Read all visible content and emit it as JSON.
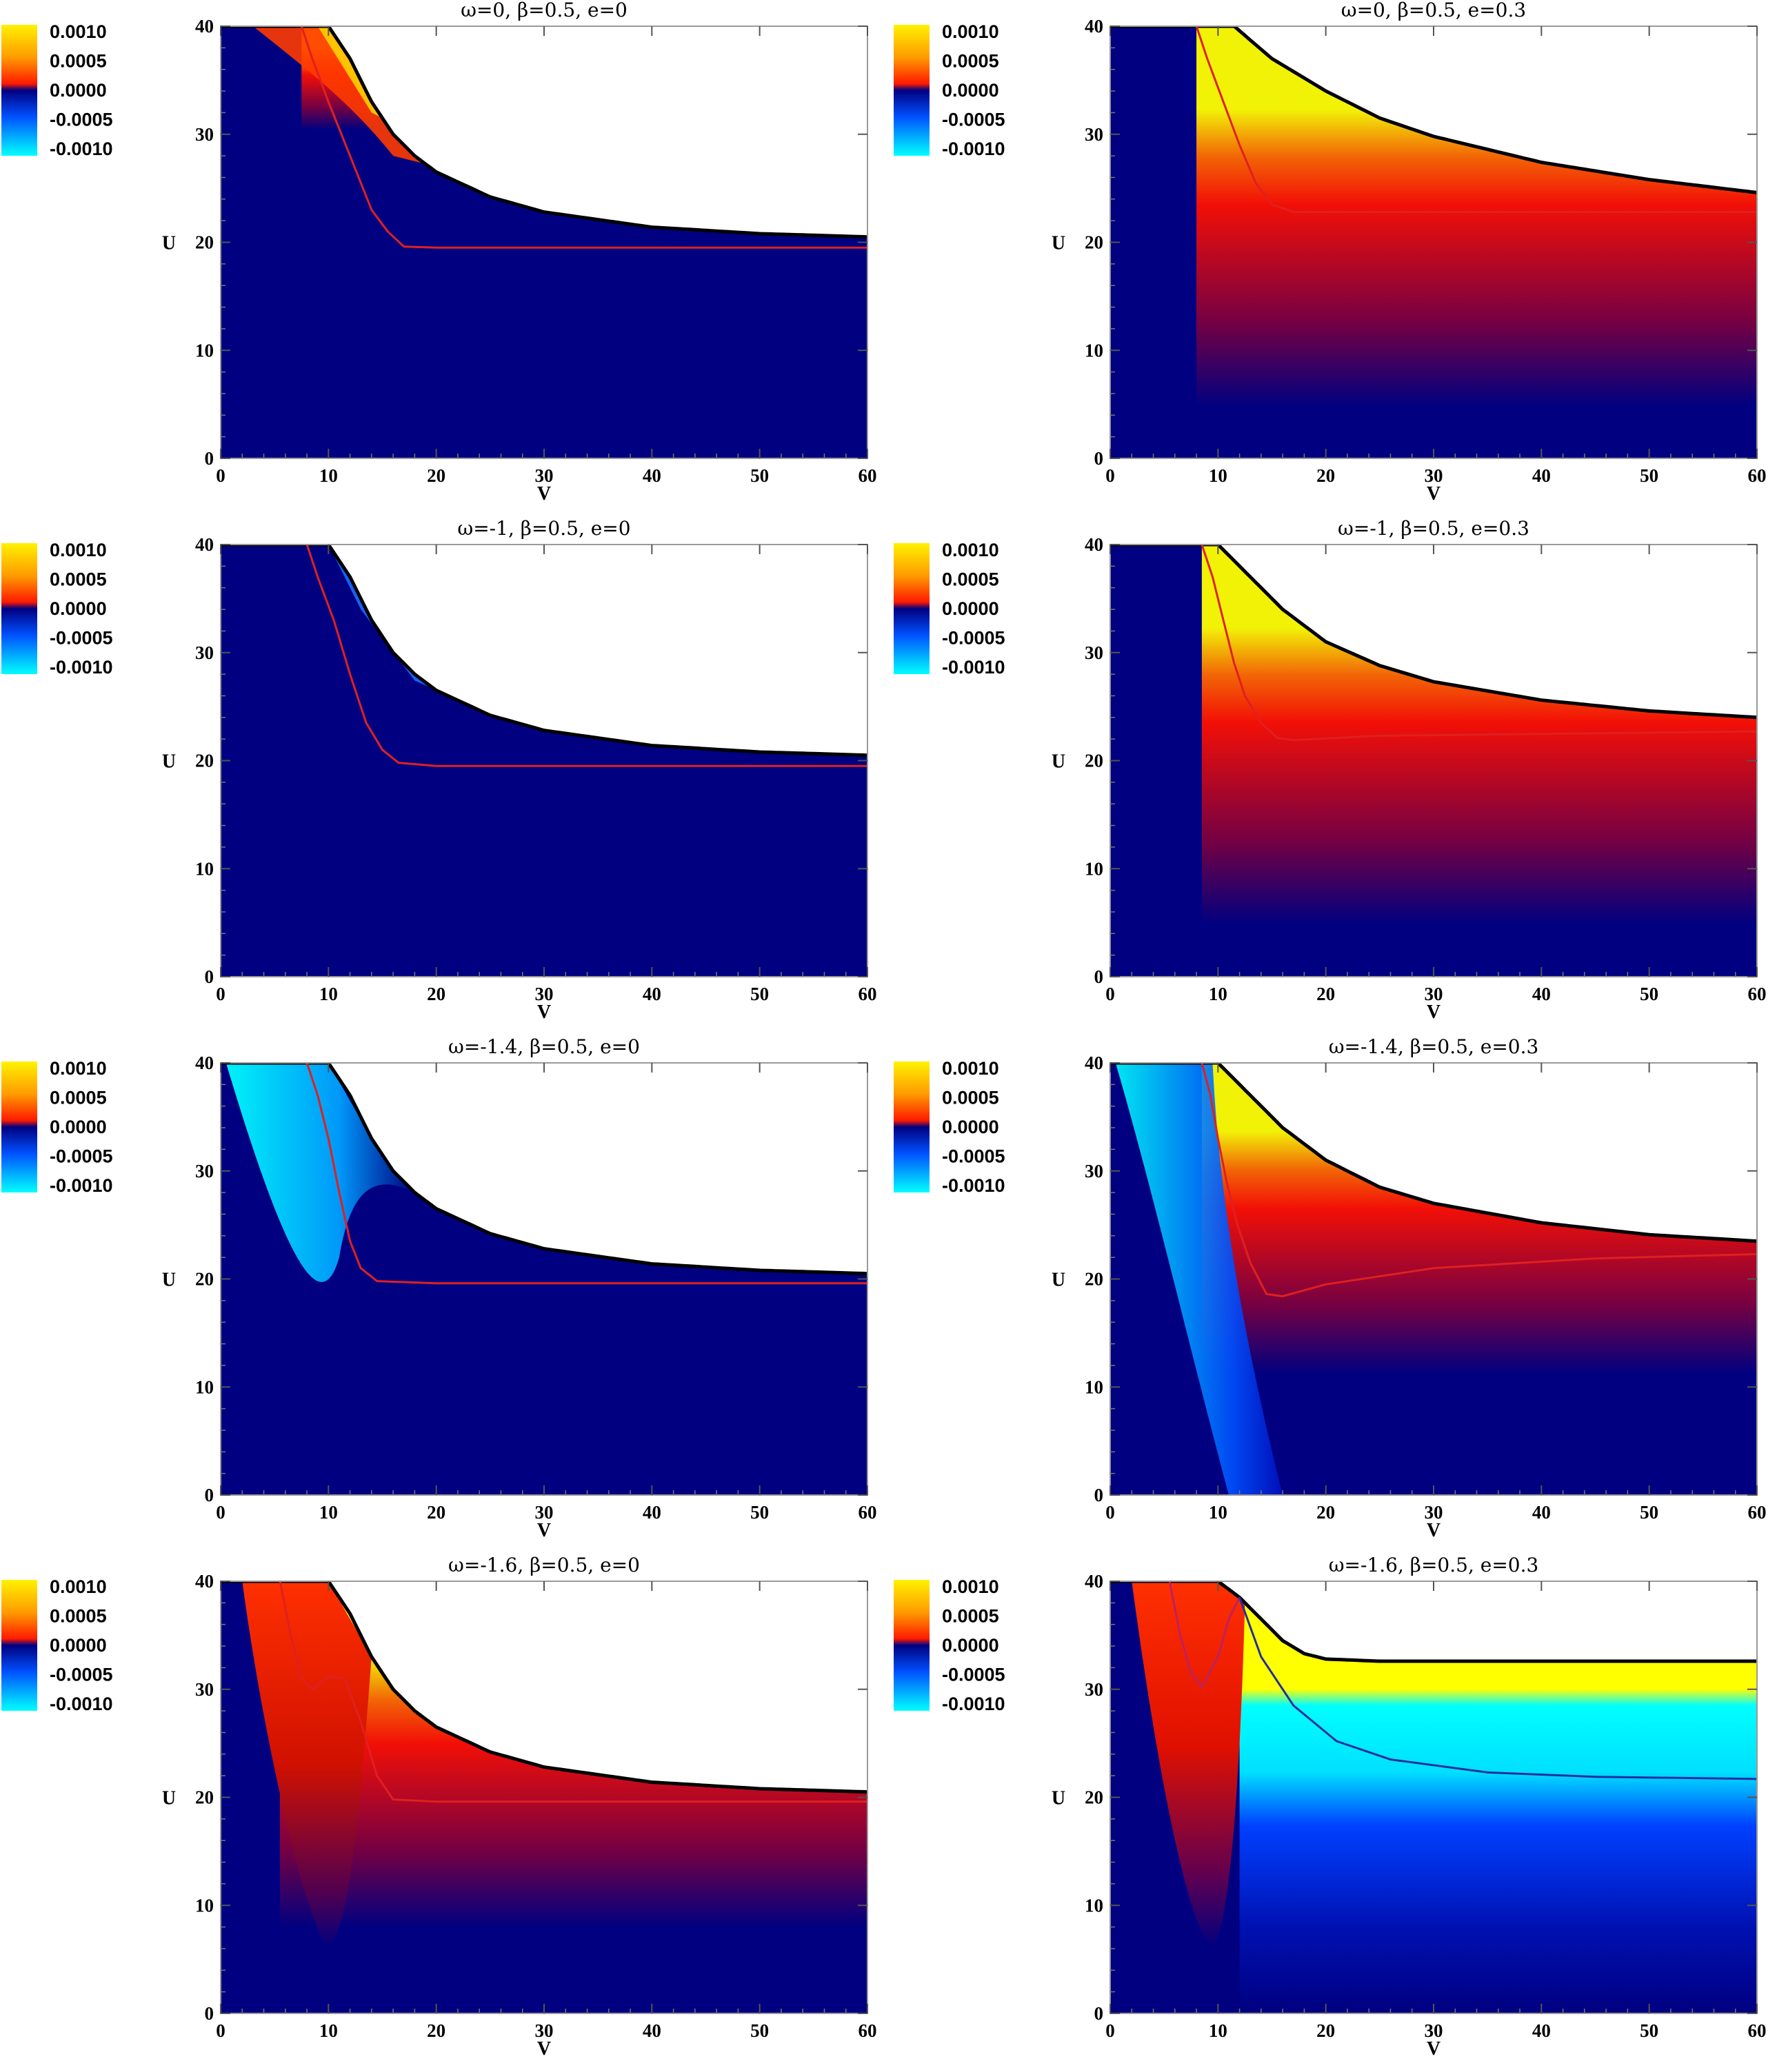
{
  "colorbar": {
    "labels": [
      "0.0010",
      "0.0005",
      "0.0000",
      "-0.0005",
      "-0.0010"
    ],
    "colors": [
      "#fff200",
      "#ff9a00",
      "#ff1a00",
      "#000080",
      "#0050ff",
      "#00ffff"
    ]
  },
  "chart_data": [
    {
      "type": "heatmap",
      "title": "ω=0,   β=0.5,   e=0",
      "xlabel": "V",
      "ylabel": "U",
      "xlim": [
        0,
        60
      ],
      "ylim": [
        0,
        40
      ],
      "xticks": [
        "0",
        "10",
        "20",
        "30",
        "40",
        "50",
        "60"
      ],
      "yticks": [
        "0",
        "10",
        "20",
        "30",
        "40"
      ],
      "boundary": [
        [
          0,
          40
        ],
        [
          10,
          40
        ],
        [
          12,
          37
        ],
        [
          14,
          33
        ],
        [
          16,
          30
        ],
        [
          18,
          28
        ],
        [
          20,
          26.5
        ],
        [
          25,
          24.2
        ],
        [
          30,
          22.8
        ],
        [
          40,
          21.4
        ],
        [
          50,
          20.8
        ],
        [
          60,
          20.5
        ]
      ],
      "red_curve": [
        [
          7.5,
          40
        ],
        [
          8.5,
          37
        ],
        [
          10,
          33
        ],
        [
          12,
          28
        ],
        [
          14,
          23
        ],
        [
          15.5,
          21
        ],
        [
          17,
          19.6
        ],
        [
          20,
          19.5
        ],
        [
          60,
          19.5
        ]
      ],
      "yellow_band": 0.15
    },
    {
      "type": "heatmap",
      "title": "ω=0,   β=0.5,   e=0.3",
      "xlabel": "V",
      "ylabel": "U",
      "xlim": [
        0,
        60
      ],
      "ylim": [
        0,
        40
      ],
      "xticks": [
        "0",
        "10",
        "20",
        "30",
        "40",
        "50",
        "60"
      ],
      "yticks": [
        "0",
        "10",
        "20",
        "30",
        "40"
      ],
      "boundary": [
        [
          0,
          40
        ],
        [
          11.5,
          40
        ],
        [
          15,
          37
        ],
        [
          20,
          34
        ],
        [
          25,
          31.5
        ],
        [
          30,
          29.8
        ],
        [
          40,
          27.4
        ],
        [
          50,
          25.8
        ],
        [
          60,
          24.6
        ]
      ],
      "red_curve": [
        [
          8,
          40
        ],
        [
          9,
          37
        ],
        [
          10.5,
          33
        ],
        [
          12,
          29
        ],
        [
          13.5,
          25.5
        ],
        [
          15,
          23.5
        ],
        [
          17,
          22.8
        ],
        [
          25,
          22.8
        ],
        [
          60,
          22.8
        ]
      ],
      "yellow_band": 0.55
    },
    {
      "type": "heatmap",
      "title": "ω=-1,   β=0.5,   e=0",
      "xlabel": "V",
      "ylabel": "U",
      "xlim": [
        0,
        60
      ],
      "ylim": [
        0,
        40
      ],
      "xticks": [
        "0",
        "10",
        "20",
        "30",
        "40",
        "50",
        "60"
      ],
      "yticks": [
        "0",
        "10",
        "20",
        "30",
        "40"
      ],
      "boundary": [
        [
          0,
          40
        ],
        [
          10,
          40
        ],
        [
          12,
          37
        ],
        [
          14,
          33
        ],
        [
          16,
          30
        ],
        [
          18,
          28
        ],
        [
          20,
          26.5
        ],
        [
          25,
          24.2
        ],
        [
          30,
          22.8
        ],
        [
          40,
          21.4
        ],
        [
          50,
          20.8
        ],
        [
          60,
          20.5
        ]
      ],
      "red_curve": [
        [
          8,
          40
        ],
        [
          9,
          37
        ],
        [
          10.5,
          33
        ],
        [
          12,
          28
        ],
        [
          13.5,
          23.5
        ],
        [
          15,
          21
        ],
        [
          16.5,
          19.8
        ],
        [
          20,
          19.5
        ],
        [
          60,
          19.5
        ]
      ],
      "yellow_band": 0
    },
    {
      "type": "heatmap",
      "title": "ω=-1,   β=0.5,   e=0.3",
      "xlabel": "V",
      "ylabel": "U",
      "xlim": [
        0,
        60
      ],
      "ylim": [
        0,
        40
      ],
      "xticks": [
        "0",
        "10",
        "20",
        "30",
        "40",
        "50",
        "60"
      ],
      "yticks": [
        "0",
        "10",
        "20",
        "30",
        "40"
      ],
      "boundary": [
        [
          0,
          40
        ],
        [
          10,
          40
        ],
        [
          13,
          37
        ],
        [
          16,
          34
        ],
        [
          20,
          31
        ],
        [
          25,
          28.8
        ],
        [
          30,
          27.3
        ],
        [
          40,
          25.6
        ],
        [
          50,
          24.6
        ],
        [
          60,
          24
        ]
      ],
      "red_curve": [
        [
          8.5,
          40
        ],
        [
          9.5,
          37
        ],
        [
          10.5,
          33
        ],
        [
          11.5,
          29
        ],
        [
          12.5,
          26
        ],
        [
          14,
          23.5
        ],
        [
          15.5,
          22.1
        ],
        [
          17,
          21.9
        ],
        [
          25,
          22.3
        ],
        [
          60,
          22.7
        ]
      ],
      "yellow_band": 0.55
    },
    {
      "type": "heatmap",
      "title": "ω=-1.4,   β=0.5,   e=0",
      "xlabel": "V",
      "ylabel": "U",
      "xlim": [
        0,
        60
      ],
      "ylim": [
        0,
        40
      ],
      "xticks": [
        "0",
        "10",
        "20",
        "30",
        "40",
        "50",
        "60"
      ],
      "yticks": [
        "0",
        "10",
        "20",
        "30",
        "40"
      ],
      "boundary": [
        [
          0,
          40
        ],
        [
          10,
          40
        ],
        [
          12,
          37
        ],
        [
          14,
          33
        ],
        [
          16,
          30
        ],
        [
          18,
          28
        ],
        [
          20,
          26.5
        ],
        [
          25,
          24.2
        ],
        [
          30,
          22.8
        ],
        [
          40,
          21.4
        ],
        [
          50,
          20.8
        ],
        [
          60,
          20.5
        ]
      ],
      "red_curve": [
        [
          8,
          40
        ],
        [
          9,
          37
        ],
        [
          10,
          33
        ],
        [
          11,
          28
        ],
        [
          12,
          23.5
        ],
        [
          13,
          21
        ],
        [
          14.5,
          19.8
        ],
        [
          20,
          19.6
        ],
        [
          60,
          19.6
        ]
      ],
      "yellow_band": 0,
      "cyan_band": 0.4
    },
    {
      "type": "heatmap",
      "title": "ω=-1.4,   β=0.5,   e=0.3",
      "xlabel": "V",
      "ylabel": "U",
      "xlim": [
        0,
        60
      ],
      "ylim": [
        0,
        40
      ],
      "xticks": [
        "0",
        "10",
        "20",
        "30",
        "40",
        "50",
        "60"
      ],
      "yticks": [
        "0",
        "10",
        "20",
        "30",
        "40"
      ],
      "boundary": [
        [
          0,
          40
        ],
        [
          10,
          40
        ],
        [
          13,
          37
        ],
        [
          16,
          34
        ],
        [
          20,
          31
        ],
        [
          25,
          28.5
        ],
        [
          30,
          27
        ],
        [
          40,
          25.2
        ],
        [
          50,
          24.1
        ],
        [
          60,
          23.5
        ]
      ],
      "red_curve": [
        [
          8.5,
          40
        ],
        [
          9.3,
          37
        ],
        [
          10,
          33
        ],
        [
          10.8,
          29
        ],
        [
          11.8,
          25
        ],
        [
          13,
          21.5
        ],
        [
          14.5,
          18.6
        ],
        [
          16,
          18.4
        ],
        [
          20,
          19.5
        ],
        [
          30,
          21
        ],
        [
          45,
          21.9
        ],
        [
          60,
          22.3
        ]
      ],
      "yellow_band": 0.45
    },
    {
      "type": "heatmap",
      "title": "ω=-1.6,   β=0.5,   e=0",
      "xlabel": "V",
      "ylabel": "U",
      "xlim": [
        0,
        60
      ],
      "ylim": [
        0,
        40
      ],
      "xticks": [
        "0",
        "10",
        "20",
        "30",
        "40",
        "50",
        "60"
      ],
      "yticks": [
        "0",
        "10",
        "20",
        "30",
        "40"
      ],
      "boundary": [
        [
          0,
          40
        ],
        [
          10,
          40
        ],
        [
          12,
          37
        ],
        [
          14,
          33
        ],
        [
          16,
          30
        ],
        [
          18,
          28
        ],
        [
          20,
          26.5
        ],
        [
          25,
          24.2
        ],
        [
          30,
          22.8
        ],
        [
          40,
          21.4
        ],
        [
          50,
          20.8
        ],
        [
          60,
          20.5
        ]
      ],
      "red_curve": [
        [
          5.5,
          40
        ],
        [
          6.5,
          35
        ],
        [
          7.5,
          31
        ],
        [
          8.5,
          30
        ],
        [
          10,
          31.2
        ],
        [
          11.5,
          31
        ],
        [
          13,
          27
        ],
        [
          14.5,
          22
        ],
        [
          16,
          19.8
        ],
        [
          20,
          19.6
        ],
        [
          60,
          19.6
        ]
      ],
      "yellow_band": 0.5
    },
    {
      "type": "heatmap",
      "title": "ω=-1.6,   β=0.5,   e=0.3",
      "xlabel": "V",
      "ylabel": "U",
      "xlim": [
        0,
        60
      ],
      "ylim": [
        0,
        40
      ],
      "xticks": [
        "0",
        "10",
        "20",
        "30",
        "40",
        "50",
        "60"
      ],
      "yticks": [
        "0",
        "10",
        "20",
        "30",
        "40"
      ],
      "boundary": [
        [
          0,
          40
        ],
        [
          10,
          40
        ],
        [
          12,
          38.5
        ],
        [
          14,
          36.5
        ],
        [
          16,
          34.5
        ],
        [
          18,
          33.3
        ],
        [
          20,
          32.8
        ],
        [
          25,
          32.6
        ],
        [
          60,
          32.6
        ]
      ],
      "red_curve": [
        [
          5.5,
          40
        ],
        [
          6.5,
          35
        ],
        [
          7.5,
          31.5
        ],
        [
          8.5,
          30.2
        ],
        [
          10,
          33
        ],
        [
          11,
          36.5
        ],
        [
          12,
          38.5
        ]
      ],
      "blue_curve": [
        [
          12,
          38.5
        ],
        [
          14,
          33
        ],
        [
          17,
          28.5
        ],
        [
          21,
          25.2
        ],
        [
          26,
          23.5
        ],
        [
          35,
          22.3
        ],
        [
          45,
          21.9
        ],
        [
          60,
          21.7
        ]
      ],
      "yellow_band": 0.5,
      "cyan_band": 0.5
    }
  ]
}
